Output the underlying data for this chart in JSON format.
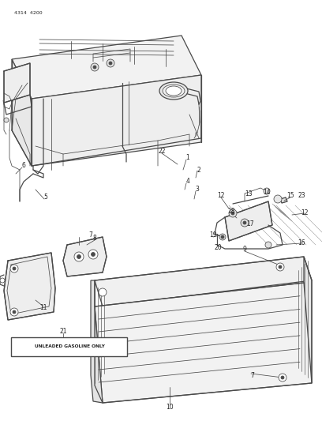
{
  "bg_color": "#ffffff",
  "line_color": "#4a4a4a",
  "text_color": "#222222",
  "title_text": "4314  4200",
  "box_label": "UNLEADED GASOLINE ONLY",
  "fig_width": 4.08,
  "fig_height": 5.33,
  "dpi": 100,
  "lw_main": 0.9,
  "lw_thin": 0.55,
  "lw_thick": 1.2,
  "fs_label": 5.5,
  "fs_title": 5.0,
  "tank_color": "#f5f5f5",
  "tank_dark": "#e8e8e8",
  "skid_color": "#f0f0f0",
  "shield_color": "#ececec"
}
